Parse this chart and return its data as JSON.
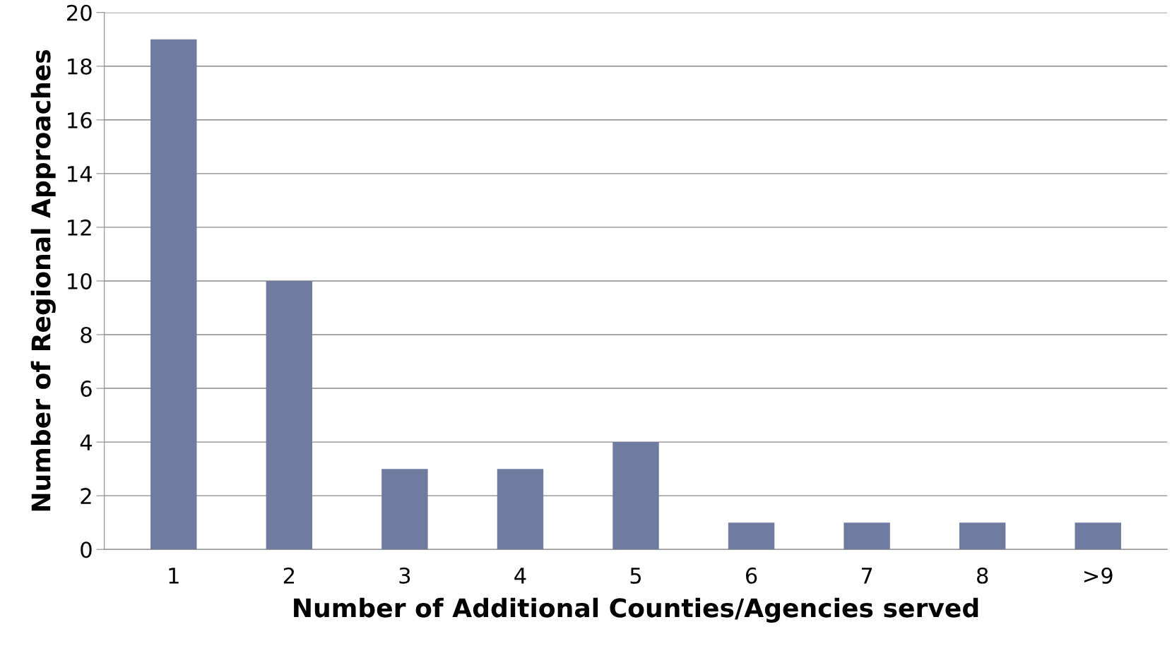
{
  "chart_data": {
    "type": "bar",
    "xlabel": "Number of Additional Counties/Agencies served",
    "ylabel": "Number of Regional Approaches",
    "categories": [
      "1",
      "2",
      "3",
      "4",
      "5",
      "6",
      "7",
      "8",
      ">9"
    ],
    "values": [
      19,
      10,
      3,
      3,
      4,
      1,
      1,
      1,
      1
    ],
    "color": "#707ba0",
    "ylim": [
      0,
      20
    ],
    "yticks": [
      0,
      2,
      4,
      6,
      8,
      10,
      12,
      14,
      16,
      18,
      20
    ],
    "grid": "y"
  }
}
